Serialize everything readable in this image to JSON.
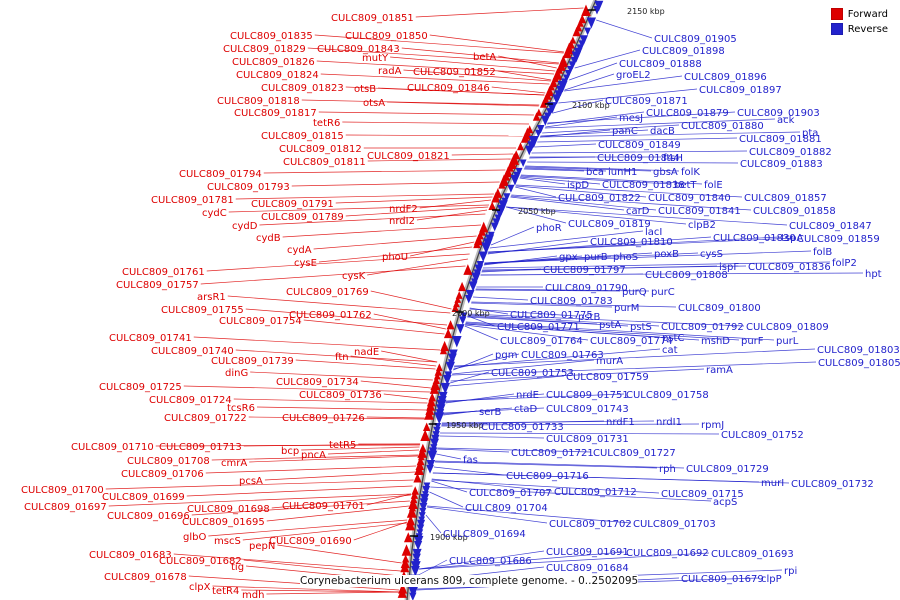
{
  "caption": "Corynebacterium ulcerans 809, complete genome. - 0..2502095",
  "legend": {
    "forward": "Forward",
    "reverse": "Reverse"
  },
  "colors": {
    "forward": "#dd0000",
    "reverse": "#2222cc",
    "backbone_light": "#bdbdbd",
    "backbone_dark": "#444444",
    "tick": "#000000"
  },
  "ticks": [
    [
      "2150 kbp",
      627,
      6
    ],
    [
      "2100 kbp",
      572,
      100
    ],
    [
      "2050 kbp",
      518,
      206
    ],
    [
      "2000 kbp",
      452,
      308
    ],
    [
      "1950 kbp",
      446,
      420
    ],
    [
      "1900 kbp",
      430,
      532
    ]
  ],
  "genes": {
    "forward": [
      [
        "CULC809_01851",
        331,
        13
      ],
      [
        "CULC809_01835",
        230,
        31
      ],
      [
        "CULC809_01850",
        345,
        31
      ],
      [
        "CULC809_01829",
        223,
        44
      ],
      [
        "CULC809_01843",
        317,
        44
      ],
      [
        "mutY",
        362,
        53
      ],
      [
        "CULC809_01826",
        232,
        57
      ],
      [
        "betA",
        473,
        52
      ],
      [
        "radA",
        378,
        66
      ],
      [
        "CULC809_01824",
        236,
        70
      ],
      [
        "CULC809_01852",
        413,
        67
      ],
      [
        "CULC809_01823",
        261,
        83
      ],
      [
        "otsB",
        354,
        84
      ],
      [
        "CULC809_01846",
        407,
        83
      ],
      [
        "CULC809_01818",
        217,
        96
      ],
      [
        "otsA",
        363,
        98
      ],
      [
        "CULC809_01817",
        234,
        108
      ],
      [
        "tetR6",
        313,
        118
      ],
      [
        "CULC809_01815",
        261,
        131
      ],
      [
        "CULC809_01812",
        279,
        144
      ],
      [
        "CULC809_01821",
        367,
        151
      ],
      [
        "CULC809_01811",
        283,
        157
      ],
      [
        "CULC809_01794",
        179,
        169
      ],
      [
        "CULC809_01793",
        207,
        182
      ],
      [
        "CULC809_01781",
        151,
        195
      ],
      [
        "CULC809_01791",
        251,
        199
      ],
      [
        "cydC",
        202,
        208
      ],
      [
        "nrdF2",
        389,
        204
      ],
      [
        "CULC809_01789",
        261,
        212
      ],
      [
        "nrdI2",
        389,
        216
      ],
      [
        "cydD",
        232,
        221
      ],
      [
        "cydB",
        256,
        233
      ],
      [
        "cydA",
        287,
        245
      ],
      [
        "phoU",
        382,
        252
      ],
      [
        "cysE",
        294,
        258
      ],
      [
        "cysK",
        342,
        271
      ],
      [
        "CULC809_01761",
        122,
        267
      ],
      [
        "CULC809_01757",
        116,
        280
      ],
      [
        "CULC809_01769",
        286,
        287
      ],
      [
        "arsR1",
        197,
        292
      ],
      [
        "CULC809_01755",
        161,
        305
      ],
      [
        "CULC809_01762",
        289,
        310
      ],
      [
        "CULC809_01754",
        219,
        316
      ],
      [
        "CULC809_01741",
        109,
        333
      ],
      [
        "CULC809_01740",
        151,
        346
      ],
      [
        "nadE",
        354,
        347
      ],
      [
        "ftn",
        335,
        352
      ],
      [
        "CULC809_01739",
        211,
        356
      ],
      [
        "dinG",
        225,
        368
      ],
      [
        "CULC809_01734",
        276,
        377
      ],
      [
        "CULC809_01725",
        99,
        382
      ],
      [
        "CULC809_01736",
        299,
        390
      ],
      [
        "CULC809_01724",
        149,
        395
      ],
      [
        "tcsR6",
        227,
        403
      ],
      [
        "CULC809_01722",
        164,
        413
      ],
      [
        "CULC809_01726",
        282,
        413
      ],
      [
        "tetR5",
        329,
        440
      ],
      [
        "CULC809_01710",
        71,
        442
      ],
      [
        "CULC809_01713",
        159,
        442
      ],
      [
        "bcp",
        281,
        446
      ],
      [
        "pncA",
        301,
        450
      ],
      [
        "CULC809_01708",
        127,
        456
      ],
      [
        "cmrA",
        221,
        458
      ],
      [
        "CULC809_01706",
        121,
        469
      ],
      [
        "pcsA",
        239,
        476
      ],
      [
        "CULC809_01700",
        21,
        485
      ],
      [
        "CULC809_01699",
        102,
        492
      ],
      [
        "CULC809_01701",
        282,
        501
      ],
      [
        "CULC809_01697",
        24,
        502
      ],
      [
        "CULC809_01698",
        187,
        504
      ],
      [
        "CULC809_01696",
        107,
        511
      ],
      [
        "CULC809_01695",
        182,
        517
      ],
      [
        "glbO",
        183,
        532
      ],
      [
        "mscS",
        214,
        536
      ],
      [
        "CULC809_01690",
        269,
        536
      ],
      [
        "pepN",
        249,
        541
      ],
      [
        "CULC809_01683",
        89,
        550
      ],
      [
        "CULC809_01682",
        159,
        556
      ],
      [
        "tig",
        231,
        562
      ],
      [
        "CULC809_01678",
        104,
        572
      ],
      [
        "clpX",
        189,
        582
      ],
      [
        "tetR4",
        212,
        586
      ],
      [
        "mdh",
        242,
        590
      ]
    ],
    "reverse": [
      [
        "CULC809_01905",
        654,
        34
      ],
      [
        "CULC809_01898",
        642,
        46
      ],
      [
        "CULC809_01888",
        619,
        59
      ],
      [
        "groEL2",
        616,
        70
      ],
      [
        "CULC809_01896",
        684,
        72
      ],
      [
        "CULC809_01897",
        699,
        85
      ],
      [
        "CULC809_01871",
        605,
        96
      ],
      [
        "CULC809_01879",
        646,
        108
      ],
      [
        "CULC809_01903",
        737,
        108
      ],
      [
        "mesJ",
        619,
        113
      ],
      [
        "ack",
        777,
        115
      ],
      [
        "CULC809_01880",
        681,
        121
      ],
      [
        "panC",
        612,
        126
      ],
      [
        "dacB",
        650,
        126
      ],
      [
        "pta",
        802,
        128
      ],
      [
        "CULC809_01881",
        739,
        134
      ],
      [
        "CULC809_01849",
        598,
        140
      ],
      [
        "CULC809_01882",
        749,
        147
      ],
      [
        "CULC809_01844",
        597,
        153
      ],
      [
        "ftsH",
        663,
        153
      ],
      [
        "CULC809_01883",
        740,
        159
      ],
      [
        "bca",
        586,
        167
      ],
      [
        "iunH1",
        608,
        167
      ],
      [
        "gbsA",
        653,
        167
      ],
      [
        "folK",
        681,
        167
      ],
      [
        "ispD",
        567,
        180
      ],
      [
        "CULC809_01838",
        602,
        180
      ],
      [
        "betT",
        674,
        180
      ],
      [
        "folE",
        704,
        180
      ],
      [
        "CULC809_01822",
        558,
        193
      ],
      [
        "CULC809_01840",
        648,
        193
      ],
      [
        "CULC809_01857",
        744,
        193
      ],
      [
        "carD",
        626,
        206
      ],
      [
        "CULC809_01841",
        658,
        206
      ],
      [
        "CULC809_01858",
        753,
        206
      ],
      [
        "CULC809_01819",
        568,
        219
      ],
      [
        "clpB2",
        688,
        220
      ],
      [
        "CULC809_01847",
        789,
        221
      ],
      [
        "phoR",
        536,
        223
      ],
      [
        "lacI",
        645,
        227
      ],
      [
        "CULC809_01830",
        713,
        233
      ],
      [
        "tspA",
        781,
        233
      ],
      [
        "CULC809_01859",
        797,
        234
      ],
      [
        "CULC809_01810",
        590,
        237
      ],
      [
        "folB",
        813,
        247
      ],
      [
        "poxB",
        654,
        249
      ],
      [
        "cysS",
        700,
        249
      ],
      [
        "gpx",
        559,
        252
      ],
      [
        "purB",
        584,
        252
      ],
      [
        "phoS",
        613,
        252
      ],
      [
        "folP2",
        832,
        258
      ],
      [
        "ispF",
        719,
        262
      ],
      [
        "CULC809_01836",
        748,
        262
      ],
      [
        "CULC809_01797",
        543,
        265
      ],
      [
        "hpt",
        865,
        269
      ],
      [
        "CULC809_01808",
        645,
        270
      ],
      [
        "CULC809_01790",
        545,
        283
      ],
      [
        "purQ",
        622,
        287
      ],
      [
        "purC",
        651,
        287
      ],
      [
        "CULC809_01783",
        530,
        296
      ],
      [
        "purM",
        614,
        303
      ],
      [
        "CULC809_01800",
        678,
        303
      ],
      [
        "CULC809_01775",
        510,
        310
      ],
      [
        "pstB",
        578,
        312
      ],
      [
        "pstA",
        599,
        320
      ],
      [
        "pstS",
        630,
        322
      ],
      [
        "CULC809_01771",
        497,
        322
      ],
      [
        "CULC809_01792",
        661,
        322
      ],
      [
        "CULC809_01809",
        746,
        322
      ],
      [
        "pstC",
        662,
        333
      ],
      [
        "CULC809_01764",
        500,
        336
      ],
      [
        "CULC809_01774",
        590,
        336
      ],
      [
        "mshD",
        701,
        336
      ],
      [
        "purF",
        741,
        336
      ],
      [
        "purL",
        776,
        336
      ],
      [
        "cat",
        662,
        345
      ],
      [
        "CULC809_01803",
        817,
        345
      ],
      [
        "pgm",
        495,
        350
      ],
      [
        "CULC809_01763",
        521,
        350
      ],
      [
        "murA",
        596,
        356
      ],
      [
        "CULC809_01805",
        818,
        358
      ],
      [
        "ramA",
        706,
        365
      ],
      [
        "CULC809_01753",
        491,
        368
      ],
      [
        "CULC809_01759",
        566,
        372
      ],
      [
        "nrdE",
        516,
        390
      ],
      [
        "CULC809_01751",
        546,
        390
      ],
      [
        "CULC809_01758",
        626,
        390
      ],
      [
        "ctaD",
        514,
        404
      ],
      [
        "CULC809_01743",
        546,
        404
      ],
      [
        "serB",
        479,
        407
      ],
      [
        "nrdF1",
        606,
        417
      ],
      [
        "nrdI1",
        656,
        417
      ],
      [
        "rpmJ",
        701,
        420
      ],
      [
        "CULC809_01733",
        481,
        422
      ],
      [
        "CULC809_01752",
        721,
        430
      ],
      [
        "CULC809_01731",
        546,
        434
      ],
      [
        "CULC809_01721",
        511,
        448
      ],
      [
        "CULC809_01727",
        593,
        448
      ],
      [
        "fas",
        463,
        455
      ],
      [
        "rph",
        659,
        464
      ],
      [
        "CULC809_01729",
        686,
        464
      ],
      [
        "CULC809_01716",
        506,
        471
      ],
      [
        "murI",
        761,
        478
      ],
      [
        "CULC809_01732",
        791,
        479
      ],
      [
        "CULC809_01707",
        469,
        488
      ],
      [
        "CULC809_01712",
        554,
        487
      ],
      [
        "CULC809_01715",
        661,
        489
      ],
      [
        "acpS",
        713,
        497
      ],
      [
        "CULC809_01704",
        465,
        503
      ],
      [
        "CULC809_01702",
        549,
        519
      ],
      [
        "CULC809_01703",
        633,
        519
      ],
      [
        "CULC809_01694",
        443,
        529
      ],
      [
        "CULC809_01691",
        546,
        547
      ],
      [
        "CULC809_01692",
        626,
        548
      ],
      [
        "CULC809_01693",
        711,
        549
      ],
      [
        "CULC809_01686",
        449,
        556
      ],
      [
        "CULC809_01684",
        546,
        563
      ],
      [
        "rpi",
        784,
        566
      ],
      [
        "CULC809_01679",
        681,
        574
      ],
      [
        "clpP",
        761,
        574
      ]
    ]
  }
}
